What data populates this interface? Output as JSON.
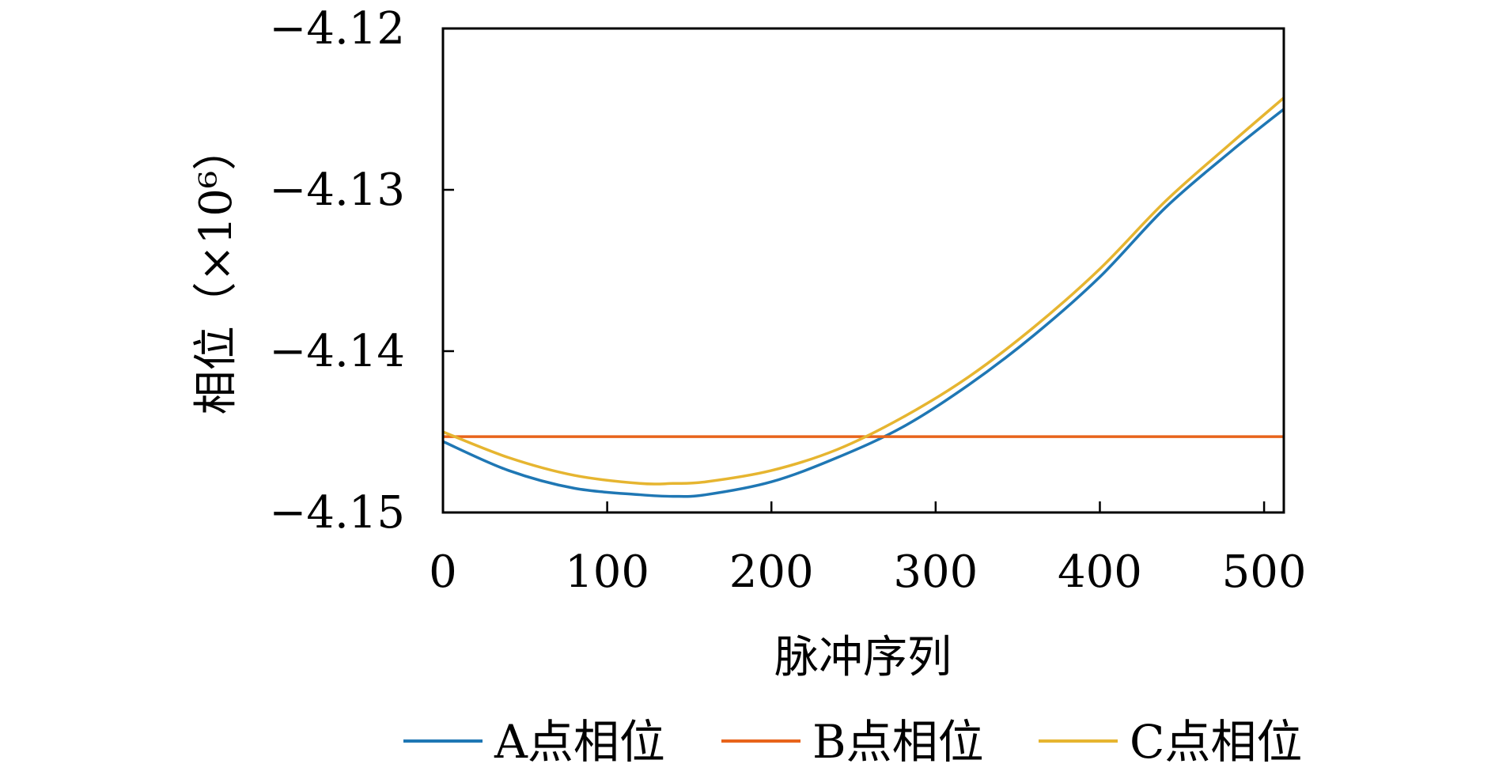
{
  "chart_data": {
    "type": "line",
    "title": "",
    "xlabel": "脉冲序列",
    "ylabel": "相位（×10⁶）",
    "xlim": [
      0,
      512
    ],
    "ylim": [
      -4.15,
      -4.12
    ],
    "x_ticks": [
      0,
      100,
      200,
      300,
      400,
      500
    ],
    "x_tick_labels": [
      "0",
      "100",
      "200",
      "300",
      "400",
      "500"
    ],
    "y_ticks": [
      -4.12,
      -4.13,
      -4.14,
      -4.15
    ],
    "y_tick_labels": [
      "−4.12",
      "−4.13",
      "−4.14",
      "−4.15"
    ],
    "grid": false,
    "legend_position": "bottom",
    "series": [
      {
        "name": "A点相位",
        "color": "#1f77b4",
        "x": [
          0,
          40,
          80,
          120,
          140,
          160,
          200,
          240,
          280,
          320,
          360,
          400,
          440,
          480,
          512
        ],
        "y": [
          -4.1456,
          -4.1474,
          -4.1485,
          -4.1489,
          -4.149,
          -4.1489,
          -4.1481,
          -4.1466,
          -4.1447,
          -4.1421,
          -4.139,
          -4.1354,
          -4.1311,
          -4.1276,
          -4.125
        ]
      },
      {
        "name": "B点相位",
        "color": "#e8641b",
        "x": [
          0,
          512
        ],
        "y": [
          -4.1453,
          -4.1453
        ]
      },
      {
        "name": "C点相位",
        "color": "#e6b530",
        "x": [
          0,
          40,
          80,
          120,
          140,
          160,
          200,
          240,
          280,
          320,
          360,
          400,
          440,
          480,
          512
        ],
        "y": [
          -4.145,
          -4.1466,
          -4.1477,
          -4.1482,
          -4.1482,
          -4.1481,
          -4.1474,
          -4.1461,
          -4.1441,
          -4.1416,
          -4.1385,
          -4.1349,
          -4.1307,
          -4.1271,
          -4.1243
        ]
      }
    ]
  }
}
